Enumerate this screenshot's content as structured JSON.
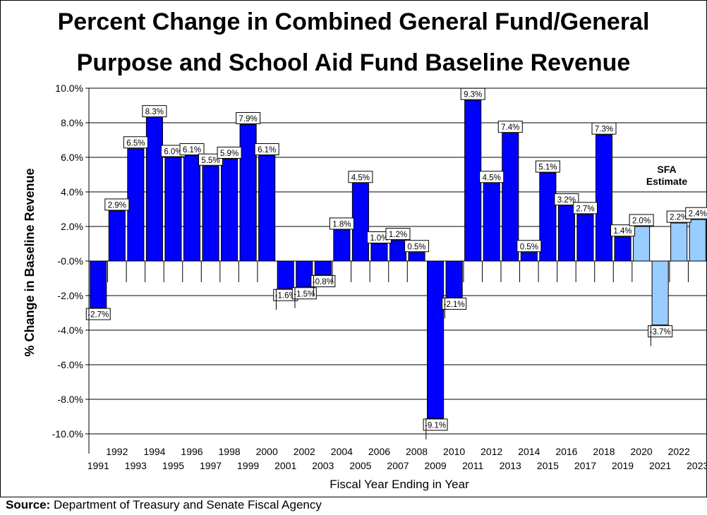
{
  "chart_data": {
    "type": "bar",
    "title_line1": "Percent Change in Combined General Fund/General",
    "title_line2": "Purpose and School Aid Fund Baseline Revenue",
    "xlabel": "Fiscal Year Ending in Year",
    "ylabel": "% Change in Baseline Revenue",
    "ylim": [
      -10,
      10
    ],
    "y_ticks": [
      "10.0%",
      "8.0%",
      "6.0%",
      "4.0%",
      "2.0%",
      "-0.0%",
      "-2.0%",
      "-4.0%",
      "-6.0%",
      "-8.0%",
      "-10.0%"
    ],
    "grid": true,
    "categories": [
      "1991",
      "1992",
      "1993",
      "1994",
      "1995",
      "1996",
      "1997",
      "1998",
      "1999",
      "2000",
      "2001",
      "2002",
      "2003",
      "2004",
      "2005",
      "2006",
      "2007",
      "2008",
      "2009",
      "2010",
      "2011",
      "2012",
      "2013",
      "2014",
      "2015",
      "2016",
      "2017",
      "2018",
      "2019",
      "2020",
      "2021",
      "2022",
      "2023"
    ],
    "values": [
      -2.7,
      2.9,
      6.5,
      8.3,
      6.0,
      6.1,
      5.5,
      5.9,
      7.9,
      6.1,
      -1.6,
      -1.5,
      -0.8,
      1.8,
      4.5,
      1.0,
      1.2,
      0.5,
      -9.1,
      -2.1,
      9.3,
      4.5,
      7.4,
      0.5,
      5.1,
      3.2,
      2.7,
      7.3,
      1.4,
      2.0,
      -3.7,
      2.2,
      2.4
    ],
    "data_labels": [
      "-2.7%",
      "2.9%",
      "6.5%",
      "8.3%",
      "6.0%",
      "6.1%",
      "5.5%",
      "5.9%",
      "7.9%",
      "6.1%",
      "-1.6%",
      "-1.5%",
      "-0.8%",
      "1.8%",
      "4.5%",
      "1.0%",
      "1.2%",
      "0.5%",
      "-9.1%",
      "-2.1%",
      "9.3%",
      "4.5%",
      "7.4%",
      "0.5%",
      "5.1%",
      "3.2%",
      "2.7%",
      "7.3%",
      "1.4%",
      "2.0%",
      "-3.7%",
      "2.2%",
      "2.4%"
    ],
    "colors": {
      "actual": "#0000ff",
      "estimate": "#99ccff"
    },
    "estimate_from": "2020",
    "annotation": {
      "line1": "SFA",
      "line2": "Estimate"
    }
  },
  "source": {
    "label": "Source:",
    "text": " Department of Treasury and Senate Fiscal Agency"
  }
}
